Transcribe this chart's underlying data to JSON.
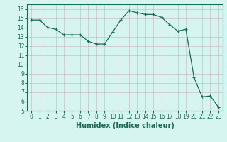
{
  "x": [
    0,
    1,
    2,
    3,
    4,
    5,
    6,
    7,
    8,
    9,
    10,
    11,
    12,
    13,
    14,
    15,
    16,
    17,
    18,
    19,
    20,
    21,
    22,
    23
  ],
  "y": [
    14.8,
    14.8,
    14.0,
    13.8,
    13.2,
    13.2,
    13.2,
    12.5,
    12.2,
    12.2,
    13.5,
    14.8,
    15.8,
    15.6,
    15.4,
    15.4,
    15.1,
    14.3,
    13.6,
    13.8,
    8.6,
    6.5,
    6.6,
    5.4
  ],
  "xlim": [
    -0.5,
    23.5
  ],
  "ylim": [
    5,
    16.5
  ],
  "yticks": [
    5,
    6,
    7,
    8,
    9,
    10,
    11,
    12,
    13,
    14,
    15,
    16
  ],
  "xticks": [
    0,
    1,
    2,
    3,
    4,
    5,
    6,
    7,
    8,
    9,
    10,
    11,
    12,
    13,
    14,
    15,
    16,
    17,
    18,
    19,
    20,
    21,
    22,
    23
  ],
  "xlabel": "Humidex (Indice chaleur)",
  "line_color": "#1a6b5a",
  "marker": "+",
  "bg_color": "#d6f5f0",
  "grid_color": "#c8bfc8",
  "tick_label_fontsize": 5.5,
  "xlabel_fontsize": 7.0
}
